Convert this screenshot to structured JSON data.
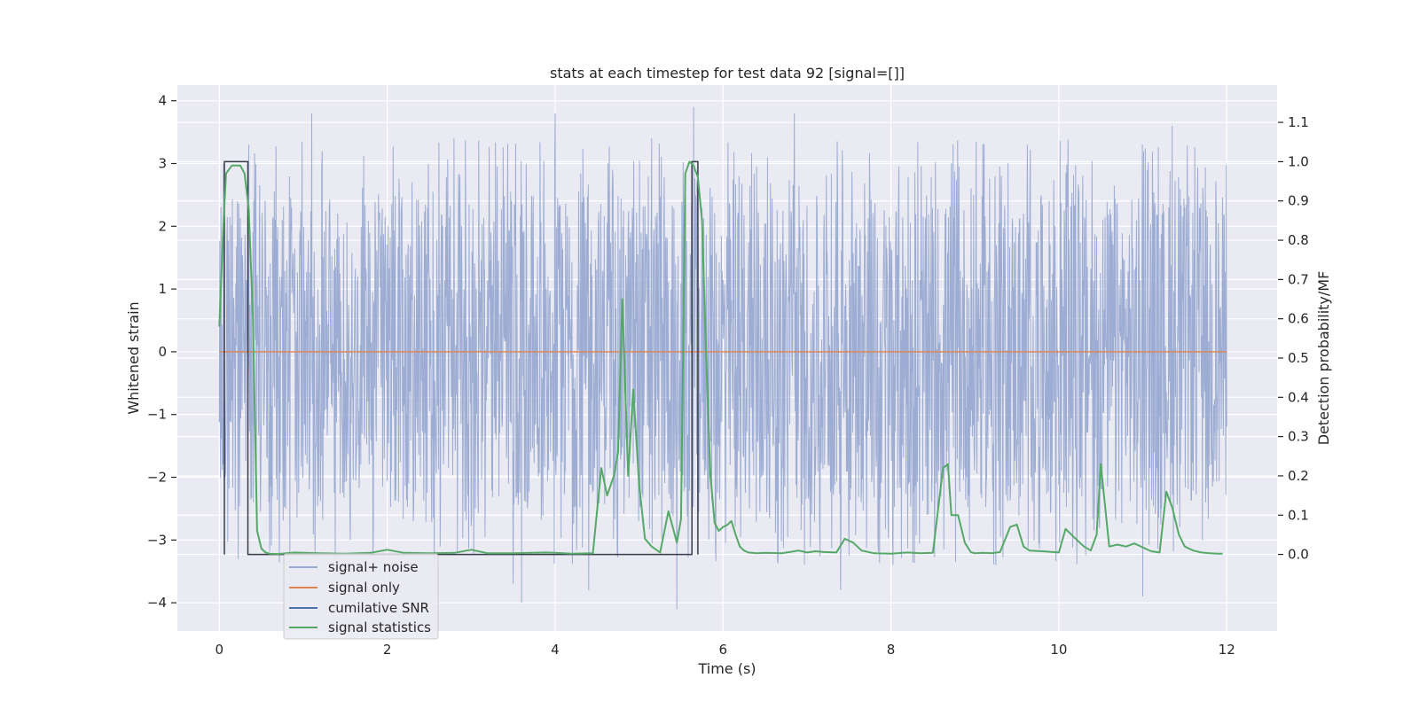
{
  "chart_data": {
    "type": "line",
    "title": "stats at each timestep for test data 92 [signal=[]]",
    "xlabel": "Time (s)",
    "ylabel": "Whitened strain",
    "y2label": "Detection probability/MF",
    "xlim": [
      -0.5,
      12.6
    ],
    "ylim": [
      -4.45,
      4.25
    ],
    "y2lim": [
      -0.195,
      1.195
    ],
    "x_ticks": [
      0,
      2,
      4,
      6,
      8,
      10,
      12
    ],
    "y_ticks": [
      -4,
      -3,
      -2,
      -1,
      0,
      1,
      2,
      3,
      4
    ],
    "y2_ticks": [
      0.0,
      0.1,
      0.2,
      0.3,
      0.4,
      0.5,
      0.6,
      0.7,
      0.8,
      0.9,
      1.0,
      1.1
    ],
    "y2_tick_labels": [
      "0.0",
      "0.1",
      "0.2",
      "0.3",
      "0.4",
      "0.5",
      "0.6",
      "0.7",
      "0.8",
      "0.9",
      "1.0",
      "1.1"
    ],
    "grid": true,
    "legend": {
      "position": "lower-left",
      "entries": [
        {
          "label": "signal+ noise",
          "color": "#98a9d1"
        },
        {
          "label": "signal only",
          "color": "#dd8452"
        },
        {
          "label": "cumilative SNR",
          "color": "#4c72b0"
        },
        {
          "label": "signal statistics",
          "color": "#55a868"
        }
      ]
    },
    "series": [
      {
        "name": "signal+ noise",
        "axis": "left",
        "color": "#98a9d1",
        "description": "dense whitened strain noise, approx. uniform within ±2.5 with peaks to ±3.9",
        "x_range": [
          0,
          12
        ],
        "envelope_typical": [
          -2.5,
          2.5
        ],
        "peaks": [
          {
            "x": 0.05,
            "y": 3.0
          },
          {
            "x": 0.35,
            "y": 3.3
          },
          {
            "x": 1.1,
            "y": 3.8
          },
          {
            "x": 3.5,
            "y": -3.7
          },
          {
            "x": 3.6,
            "y": -4.0
          },
          {
            "x": 4.0,
            "y": 3.8
          },
          {
            "x": 4.4,
            "y": -3.8
          },
          {
            "x": 5.65,
            "y": 3.9
          },
          {
            "x": 5.45,
            "y": -4.1
          },
          {
            "x": 6.85,
            "y": 3.8
          },
          {
            "x": 7.4,
            "y": -3.8
          },
          {
            "x": 11.35,
            "y": 3.6
          },
          {
            "x": 11.0,
            "y": -3.9
          },
          {
            "x": 9.25,
            "y": -3.4
          }
        ]
      },
      {
        "name": "signal only",
        "axis": "left",
        "color": "#dd8452",
        "x": [
          0,
          12
        ],
        "y": [
          0,
          0
        ]
      },
      {
        "name": "cumilative SNR",
        "axis": "right",
        "color": "#4c72b0",
        "x": [
          0.06,
          0.06,
          0.34,
          0.34,
          5.63,
          5.63,
          5.7,
          5.7
        ],
        "y": [
          0.0,
          1.0,
          1.0,
          0.0,
          0.0,
          1.0,
          1.0,
          0.0
        ]
      },
      {
        "name": "signal statistics",
        "axis": "right",
        "color": "#55a868",
        "x": [
          0.0,
          0.05,
          0.08,
          0.15,
          0.25,
          0.3,
          0.35,
          0.4,
          0.45,
          0.5,
          0.55,
          0.6,
          0.7,
          0.8,
          0.9,
          1.0,
          1.2,
          1.5,
          1.8,
          2.0,
          2.2,
          2.5,
          2.8,
          3.0,
          3.2,
          3.5,
          3.9,
          4.2,
          4.45,
          4.55,
          4.62,
          4.7,
          4.75,
          4.8,
          4.87,
          4.93,
          5.0,
          5.07,
          5.15,
          5.25,
          5.35,
          5.45,
          5.5,
          5.55,
          5.6,
          5.65,
          5.7,
          5.75,
          5.8,
          5.85,
          5.9,
          5.95,
          6.0,
          6.05,
          6.1,
          6.15,
          6.2,
          6.25,
          6.3,
          6.4,
          6.5,
          6.7,
          6.9,
          7.0,
          7.1,
          7.2,
          7.35,
          7.45,
          7.55,
          7.65,
          7.8,
          8.0,
          8.2,
          8.35,
          8.5,
          8.62,
          8.68,
          8.72,
          8.8,
          8.88,
          8.95,
          9.0,
          9.1,
          9.2,
          9.3,
          9.42,
          9.5,
          9.58,
          9.65,
          9.8,
          10.0,
          10.08,
          10.2,
          10.3,
          10.38,
          10.45,
          10.5,
          10.6,
          10.7,
          10.8,
          10.9,
          11.0,
          11.1,
          11.2,
          11.28,
          11.35,
          11.43,
          11.5,
          11.6,
          11.7,
          11.8,
          11.9,
          11.95
        ],
        "y": [
          0.58,
          0.85,
          0.97,
          0.99,
          0.99,
          0.97,
          0.88,
          0.6,
          0.06,
          0.015,
          0.005,
          0.002,
          0.001,
          0.003,
          0.005,
          0.004,
          0.003,
          0.002,
          0.004,
          0.012,
          0.004,
          0.003,
          0.004,
          0.012,
          0.003,
          0.003,
          0.005,
          0.002,
          0.003,
          0.22,
          0.15,
          0.2,
          0.26,
          0.65,
          0.2,
          0.42,
          0.18,
          0.04,
          0.02,
          0.005,
          0.11,
          0.03,
          0.09,
          0.97,
          1.0,
          0.99,
          0.96,
          0.85,
          0.5,
          0.2,
          0.08,
          0.06,
          0.07,
          0.075,
          0.085,
          0.05,
          0.02,
          0.01,
          0.005,
          0.003,
          0.004,
          0.003,
          0.01,
          0.005,
          0.008,
          0.006,
          0.005,
          0.04,
          0.03,
          0.01,
          0.003,
          0.002,
          0.005,
          0.003,
          0.004,
          0.22,
          0.23,
          0.1,
          0.1,
          0.03,
          0.006,
          0.003,
          0.004,
          0.003,
          0.006,
          0.07,
          0.076,
          0.02,
          0.01,
          0.008,
          0.005,
          0.065,
          0.04,
          0.02,
          0.01,
          0.05,
          0.23,
          0.02,
          0.025,
          0.02,
          0.028,
          0.018,
          0.008,
          0.005,
          0.16,
          0.12,
          0.05,
          0.02,
          0.01,
          0.005,
          0.003,
          0.002,
          0.002
        ]
      }
    ]
  }
}
